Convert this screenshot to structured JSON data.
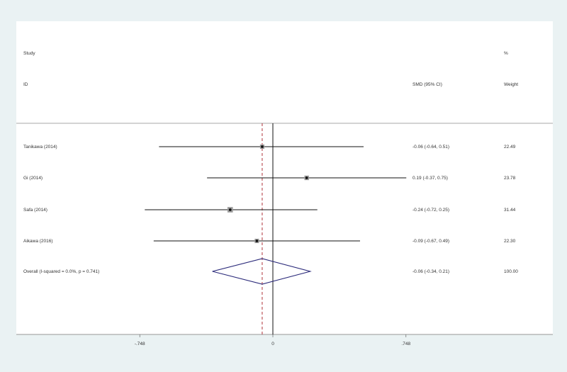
{
  "chart_data": {
    "type": "forest",
    "header": {
      "study_label": "Study",
      "id_label": "ID",
      "effect_label": "SMD (95% CI)",
      "pct_label": "%",
      "weight_label": "Weight"
    },
    "studies": [
      {
        "label": "Tanikawa (2014)",
        "smd": -0.06,
        "lo": -0.64,
        "hi": 0.51,
        "ci_text": "-0.06 (-0.64, 0.51)",
        "weight": 22.49,
        "weight_text": "22.49"
      },
      {
        "label": "Gi (2014)",
        "smd": 0.19,
        "lo": -0.37,
        "hi": 0.75,
        "ci_text": "0.19 (-0.37, 0.75)",
        "weight": 23.78,
        "weight_text": "23.78"
      },
      {
        "label": "Safa (2014)",
        "smd": -0.24,
        "lo": -0.72,
        "hi": 0.25,
        "ci_text": "-0.24 (-0.72, 0.25)",
        "weight": 31.44,
        "weight_text": "31.44"
      },
      {
        "label": "Aikawa (2016)",
        "smd": -0.09,
        "lo": -0.67,
        "hi": 0.49,
        "ci_text": "-0.09 (-0.67, 0.49)",
        "weight": 22.3,
        "weight_text": "22.30"
      }
    ],
    "overall": {
      "label": "Overall  (I-squared = 0.0%, p = 0.741)",
      "smd": -0.06,
      "lo": -0.34,
      "hi": 0.21,
      "ci_text": "-0.06 (-0.34, 0.21)",
      "weight_text": "100.00"
    },
    "x_ticks": [
      {
        "value": -0.748,
        "label": "-.748"
      },
      {
        "value": 0,
        "label": "0"
      },
      {
        "value": 0.748,
        "label": ".748"
      }
    ],
    "colors": {
      "ci_line": "#111111",
      "marker": "#111111",
      "overall_diamond": "#2b2a7a",
      "null_line": "#111111",
      "overall_line": "#b0333a",
      "axis": "#777777"
    }
  }
}
